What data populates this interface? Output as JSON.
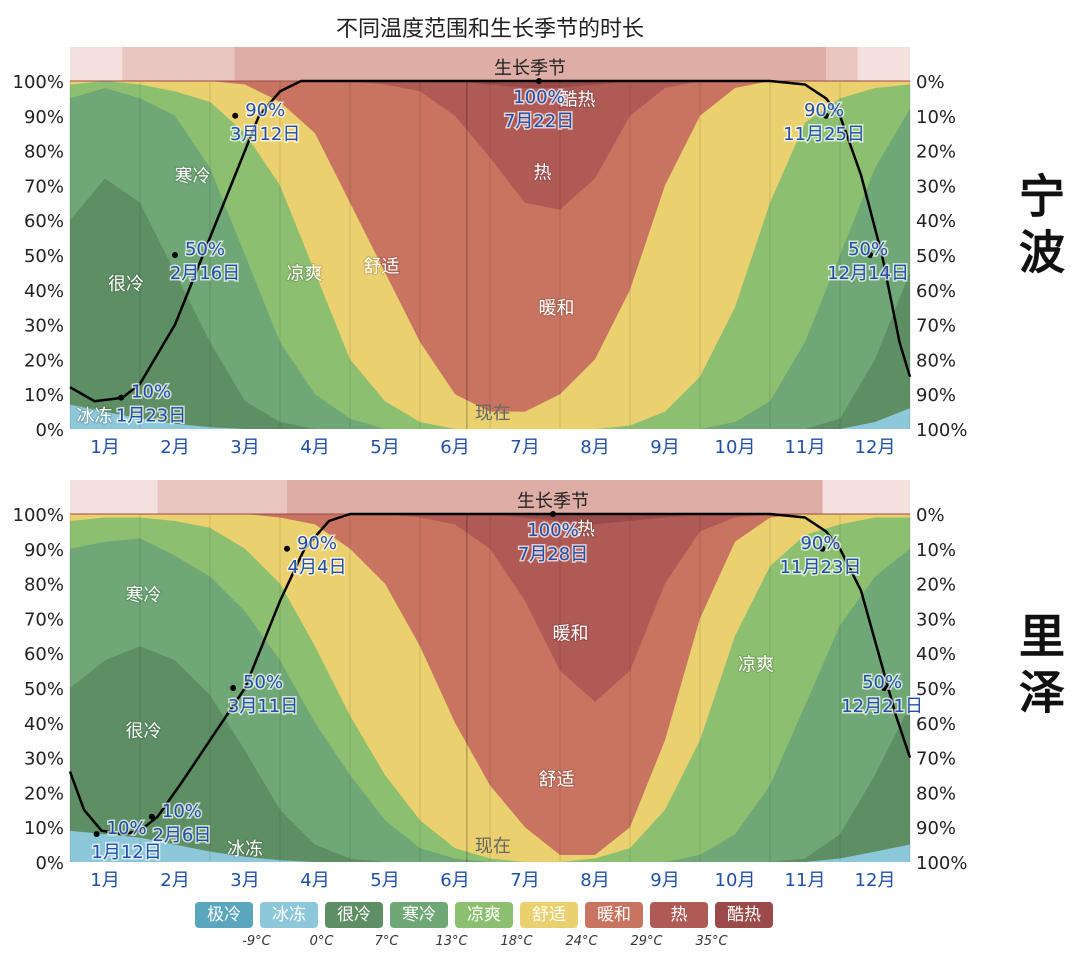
{
  "title": "不同温度范围和生长季节的时长",
  "colors": {
    "极冷": "#5aa6bd",
    "冰冻": "#8cc8da",
    "很冷": "#5e8f64",
    "寒冷": "#6fa776",
    "凉爽": "#8cc070",
    "舒适": "#ead06f",
    "暖和": "#c97460",
    "热": "#b05a56",
    "酷热": "#9b4a4a",
    "growing_band_light": "#f4e0dc",
    "growing_band_mid": "#e9c5bf",
    "growing_band_dark": "#deaea6",
    "line": "#000000",
    "annotation_text": "#1f4fa8"
  },
  "months": [
    "1月",
    "2月",
    "3月",
    "4月",
    "5月",
    "6月",
    "7月",
    "8月",
    "9月",
    "10月",
    "11月",
    "12月"
  ],
  "y_left_ticks": [
    "100%",
    "90%",
    "80%",
    "70%",
    "60%",
    "50%",
    "40%",
    "30%",
    "20%",
    "10%",
    "0%"
  ],
  "y_right_ticks": [
    "0%",
    "10%",
    "20%",
    "30%",
    "40%",
    "50%",
    "60%",
    "70%",
    "80%",
    "90%",
    "100%"
  ],
  "growing_season_label": "生长季节",
  "now_label": "现在",
  "legend": {
    "items": [
      "极冷",
      "冰冻",
      "很冷",
      "寒冷",
      "凉爽",
      "舒适",
      "暖和",
      "热",
      "酷热"
    ],
    "thresholds": [
      "-9°C",
      "0°C",
      "7°C",
      "13°C",
      "18°C",
      "24°C",
      "29°C",
      "35°C"
    ]
  },
  "chart_data": [
    {
      "type": "area",
      "city": "宁波",
      "x_unit": "month",
      "ylim": [
        0,
        100
      ],
      "y_unit": "% of time",
      "series_cumulative_upper_bounds": {
        "x": [
          0.0,
          0.5,
          1.0,
          1.5,
          2.0,
          2.5,
          3.0,
          3.5,
          4.0,
          4.5,
          5.0,
          5.5,
          6.0,
          6.5,
          7.0,
          7.5,
          8.0,
          8.5,
          9.0,
          9.5,
          10.0,
          10.5,
          11.0,
          11.5,
          12.0
        ],
        "冰冻": [
          7,
          5,
          3,
          1.5,
          0.5,
          0,
          0,
          0,
          0,
          0,
          0,
          0,
          0,
          0,
          0,
          0,
          0,
          0,
          0,
          0,
          0,
          0,
          0,
          2,
          6
        ],
        "很冷": [
          60,
          72,
          65,
          45,
          25,
          8,
          2,
          0,
          0,
          0,
          0,
          0,
          0,
          0,
          0,
          0,
          0,
          0,
          0,
          0,
          0,
          0,
          3,
          20,
          45
        ],
        "寒冷": [
          95,
          98,
          95,
          90,
          75,
          50,
          25,
          10,
          3,
          0,
          0,
          0,
          0,
          0,
          0,
          0,
          0,
          0,
          0,
          2,
          8,
          25,
          50,
          75,
          92
        ],
        "凉爽": [
          99,
          100,
          99,
          97,
          94,
          85,
          70,
          45,
          20,
          8,
          2,
          0,
          0,
          0,
          0,
          0,
          1,
          5,
          15,
          35,
          65,
          88,
          95,
          98,
          99
        ],
        "舒适": [
          100,
          100,
          100,
          100,
          100,
          99,
          94,
          85,
          65,
          45,
          25,
          10,
          5,
          5,
          10,
          20,
          40,
          70,
          90,
          98,
          100,
          100,
          100,
          100,
          100
        ],
        "暖和": [
          100,
          100,
          100,
          100,
          100,
          100,
          100,
          100,
          100,
          99,
          97,
          90,
          78,
          65,
          63,
          72,
          90,
          98,
          100,
          100,
          100,
          100,
          100,
          100,
          100
        ],
        "热": [
          100,
          100,
          100,
          100,
          100,
          100,
          100,
          100,
          100,
          100,
          100,
          100,
          99,
          98,
          98,
          99,
          100,
          100,
          100,
          100,
          100,
          100,
          100,
          100,
          100
        ]
      },
      "growing_season_line": {
        "x": [
          0.0,
          0.35,
          0.75,
          1.0,
          1.5,
          1.9,
          2.3,
          2.7,
          3.0,
          3.3,
          4.0,
          10.0,
          10.5,
          10.8,
          11.0,
          11.3,
          11.6,
          11.85,
          12.0
        ],
        "y": [
          12,
          8,
          9,
          13,
          30,
          50,
          70,
          90,
          97,
          100,
          100,
          100,
          99,
          95,
          90,
          73,
          50,
          25,
          15
        ]
      },
      "annotations": [
        {
          "pct": "10%",
          "date": "1月23日",
          "x": 0.73,
          "y": 9
        },
        {
          "pct": "50%",
          "date": "2月16日",
          "x": 1.5,
          "y": 50
        },
        {
          "pct": "90%",
          "date": "3月12日",
          "x": 2.36,
          "y": 90
        },
        {
          "pct": "100%",
          "date": "7月22日",
          "x": 6.7,
          "y": 100
        },
        {
          "pct": "90%",
          "date": "11月25日",
          "x": 10.8,
          "y": 90
        },
        {
          "pct": "50%",
          "date": "12月14日",
          "x": 11.43,
          "y": 50
        }
      ],
      "region_labels": [
        {
          "label": "酷热",
          "x": 7.25,
          "y": 95
        },
        {
          "label": "热",
          "x": 6.75,
          "y": 74
        },
        {
          "label": "暖和",
          "x": 6.95,
          "y": 35
        },
        {
          "label": "舒适",
          "x": 4.45,
          "y": 47
        },
        {
          "label": "凉爽",
          "x": 3.35,
          "y": 45
        },
        {
          "label": "寒冷",
          "x": 1.75,
          "y": 73
        },
        {
          "label": "很冷",
          "x": 0.8,
          "y": 42
        },
        {
          "label": "冰冻",
          "x": 0.35,
          "y": 4
        }
      ]
    },
    {
      "type": "area",
      "city": "里泽",
      "x_unit": "month",
      "ylim": [
        0,
        100
      ],
      "y_unit": "% of time",
      "series_cumulative_upper_bounds": {
        "x": [
          0.0,
          0.5,
          1.0,
          1.5,
          2.0,
          2.5,
          3.0,
          3.5,
          4.0,
          4.5,
          5.0,
          5.5,
          6.0,
          6.5,
          7.0,
          7.5,
          8.0,
          8.5,
          9.0,
          9.5,
          10.0,
          10.5,
          11.0,
          11.5,
          12.0
        ],
        "冰冻": [
          9,
          8,
          7,
          5,
          3,
          1.5,
          0.5,
          0,
          0,
          0,
          0,
          0,
          0,
          0,
          0,
          0,
          0,
          0,
          0,
          0,
          0,
          0,
          1,
          3,
          5
        ],
        "很冷": [
          50,
          58,
          62,
          58,
          48,
          32,
          15,
          5,
          1,
          0,
          0,
          0,
          0,
          0,
          0,
          0,
          0,
          0,
          0,
          0,
          0,
          1,
          8,
          25,
          45
        ],
        "寒冷": [
          90,
          92,
          93,
          88,
          82,
          72,
          58,
          40,
          25,
          12,
          4,
          1,
          0,
          0,
          0,
          0,
          0,
          0,
          2,
          8,
          22,
          45,
          68,
          82,
          90
        ],
        "凉爽": [
          98,
          99,
          99,
          98,
          96,
          90,
          80,
          62,
          42,
          25,
          12,
          4,
          1,
          0,
          0,
          1,
          4,
          15,
          35,
          65,
          85,
          94,
          97,
          99,
          99
        ],
        "舒适": [
          100,
          100,
          100,
          100,
          100,
          100,
          99,
          97,
          90,
          80,
          62,
          40,
          22,
          10,
          2,
          2,
          10,
          35,
          70,
          92,
          99,
          100,
          100,
          100,
          100
        ],
        "暖和": [
          100,
          100,
          100,
          100,
          100,
          100,
          100,
          100,
          100,
          100,
          99,
          97,
          90,
          75,
          55,
          46,
          55,
          80,
          95,
          99,
          100,
          100,
          100,
          100,
          100
        ],
        "热": [
          100,
          100,
          100,
          100,
          100,
          100,
          100,
          100,
          100,
          100,
          100,
          100,
          100,
          99,
          98,
          97,
          98,
          99,
          100,
          100,
          100,
          100,
          100,
          100,
          100
        ]
      },
      "growing_season_line": {
        "x": [
          0.0,
          0.2,
          0.45,
          0.75,
          1.0,
          1.25,
          1.6,
          2.0,
          2.5,
          3.0,
          3.35,
          3.7,
          4.0,
          10.0,
          10.5,
          10.8,
          11.0,
          11.3,
          11.55,
          11.8,
          12.0
        ],
        "y": [
          26,
          15,
          9,
          8,
          9,
          13,
          23,
          35,
          50,
          75,
          90,
          98,
          100,
          100,
          99,
          95,
          90,
          78,
          60,
          42,
          30
        ]
      },
      "annotations": [
        {
          "pct": "10%",
          "date": "1月12日",
          "x": 0.38,
          "y": 8
        },
        {
          "pct": "10%",
          "date": "2月6日",
          "x": 1.17,
          "y": 13
        },
        {
          "pct": "50%",
          "date": "3月11日",
          "x": 2.33,
          "y": 50
        },
        {
          "pct": "90%",
          "date": "4月4日",
          "x": 3.1,
          "y": 90
        },
        {
          "pct": "100%",
          "date": "7月28日",
          "x": 6.9,
          "y": 100
        },
        {
          "pct": "90%",
          "date": "11月23日",
          "x": 10.75,
          "y": 90
        },
        {
          "pct": "50%",
          "date": "12月21日",
          "x": 11.63,
          "y": 50
        }
      ],
      "region_labels": [
        {
          "label": "热",
          "x": 7.37,
          "y": 96
        },
        {
          "label": "暖和",
          "x": 7.15,
          "y": 66
        },
        {
          "label": "舒适",
          "x": 6.95,
          "y": 24
        },
        {
          "label": "凉爽",
          "x": 9.8,
          "y": 57
        },
        {
          "label": "寒冷",
          "x": 1.05,
          "y": 77
        },
        {
          "label": "很冷",
          "x": 1.05,
          "y": 38
        },
        {
          "label": "冰冻",
          "x": 2.5,
          "y": 4
        }
      ]
    }
  ]
}
